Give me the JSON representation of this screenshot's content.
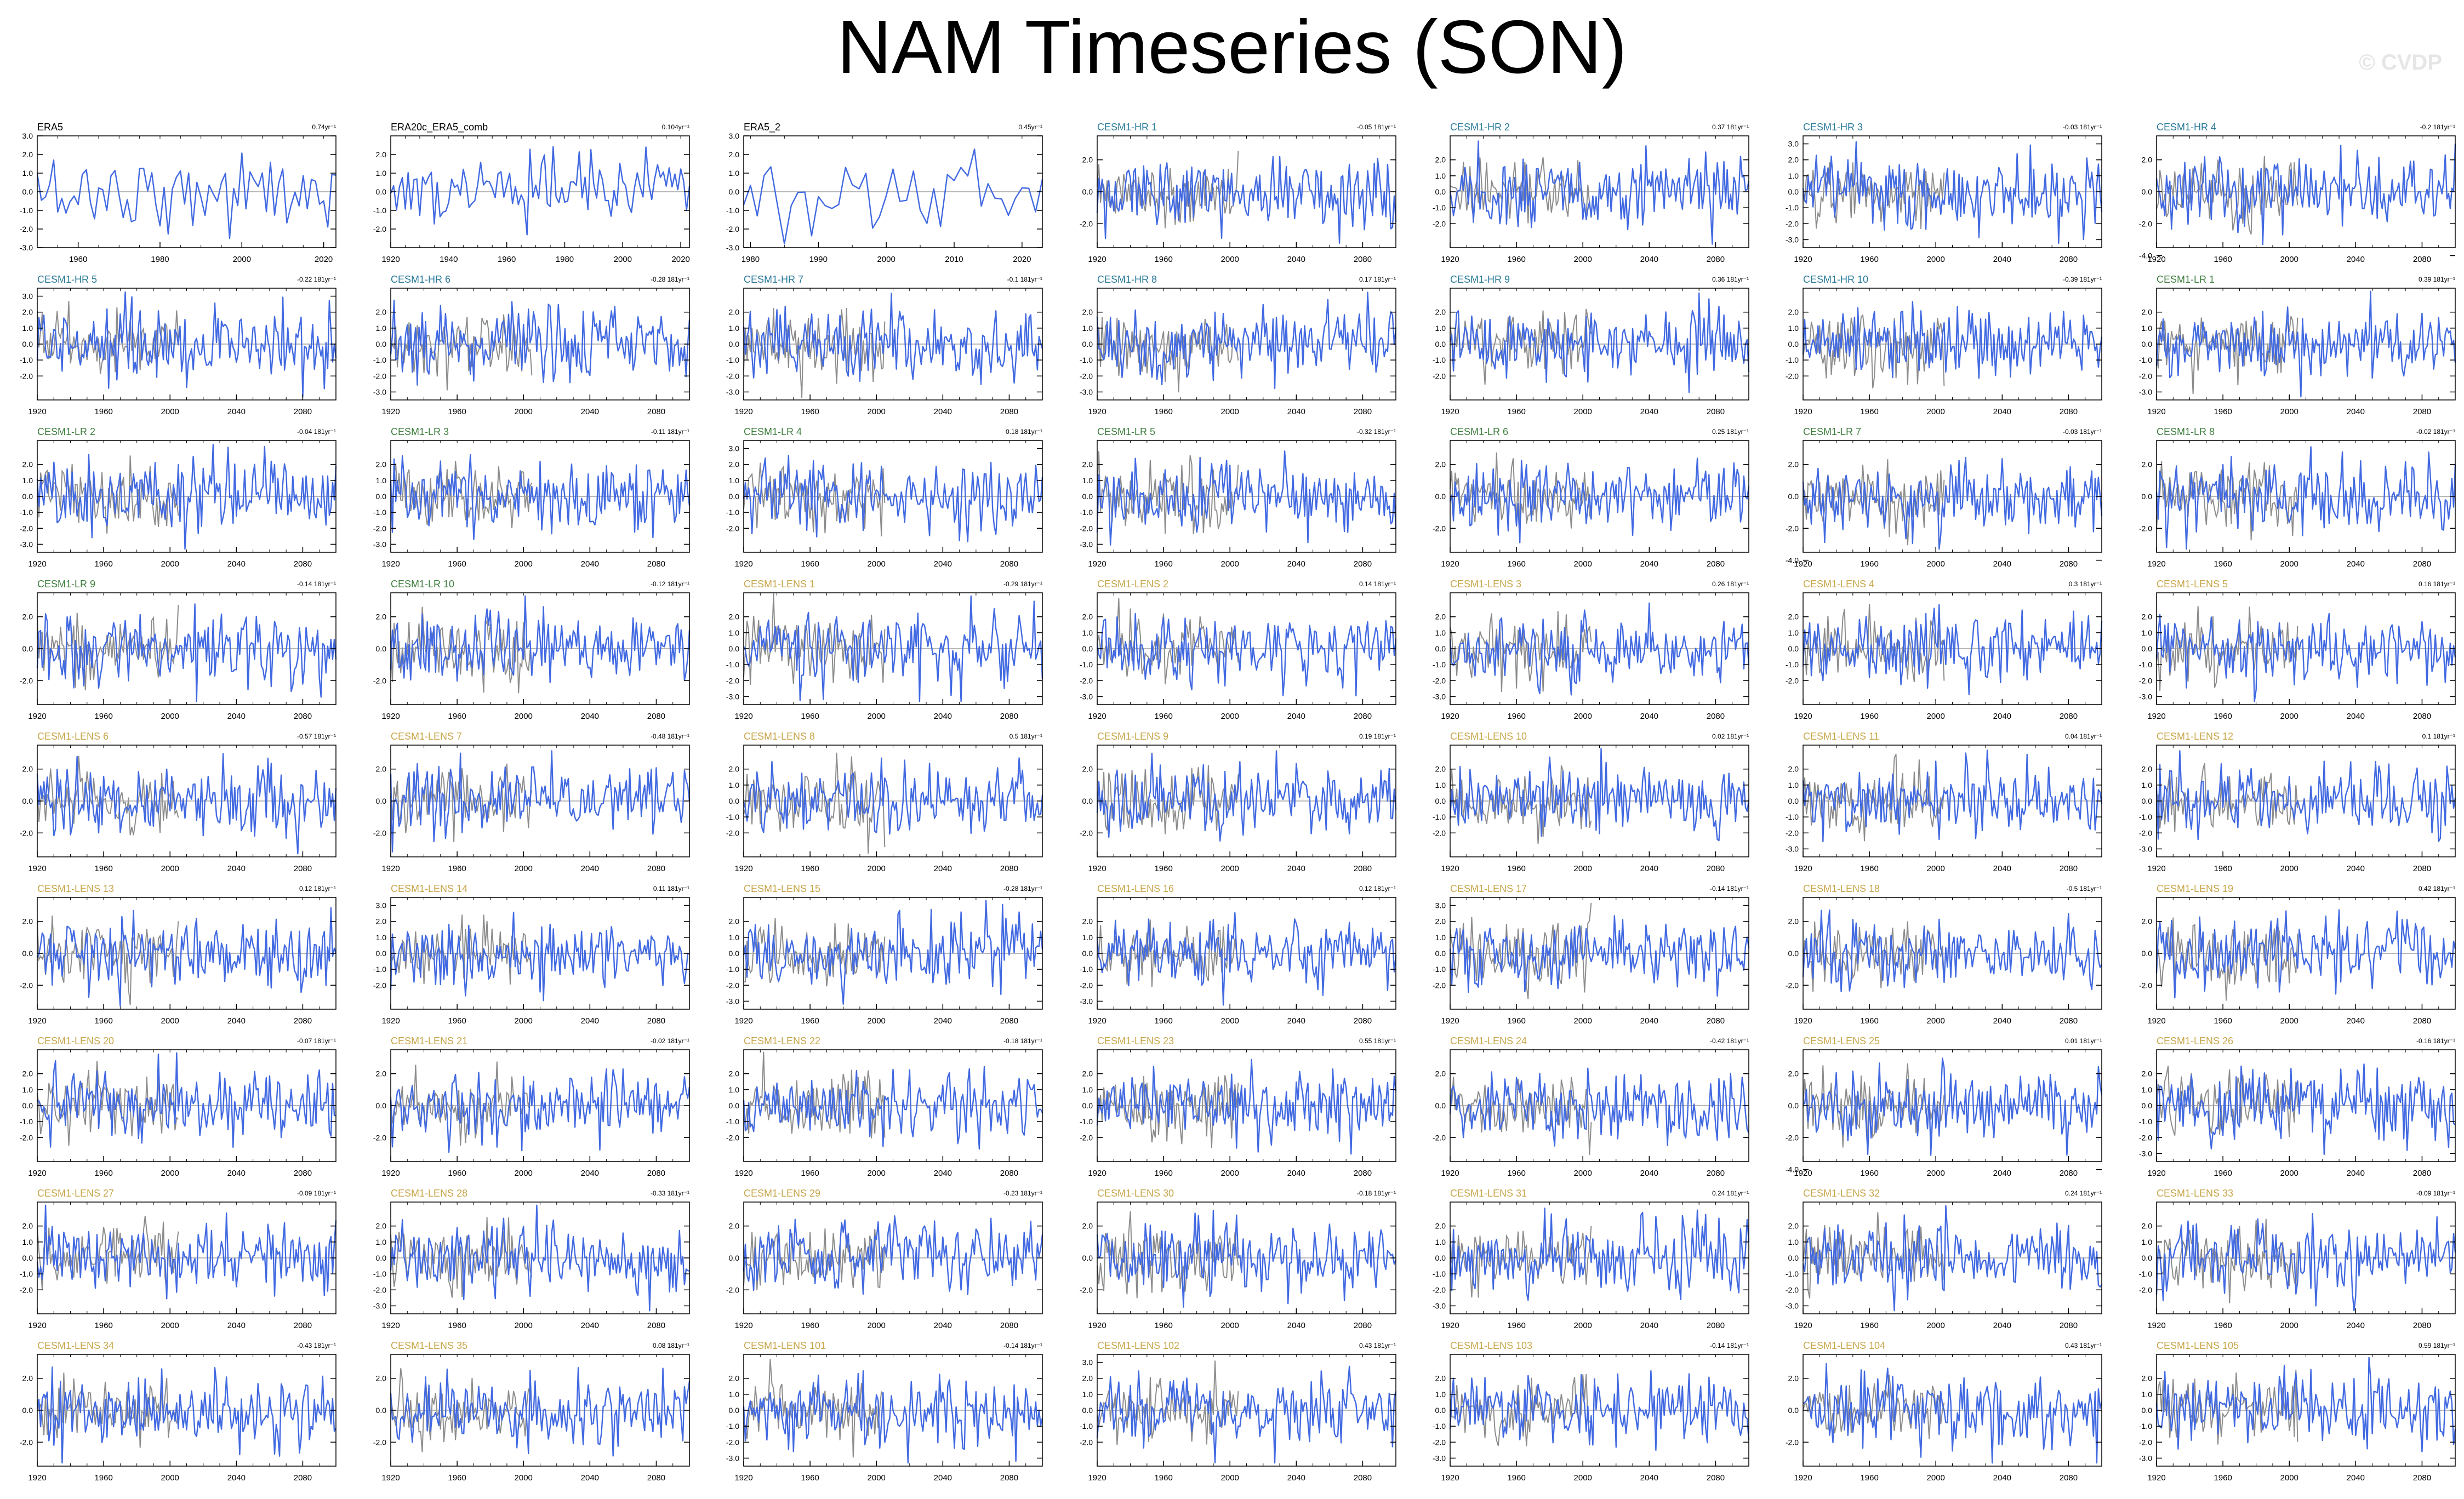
{
  "title": "NAM Timeseries (SON)",
  "watermark": "© CVDP",
  "colors": {
    "series": "#4169e1",
    "ensemble": "#8c8c8c",
    "zero_line": "#a0a0a0",
    "obs_label": "#000000",
    "hr_label": "#2a7a9a",
    "lr_label": "#3f7f3f",
    "lens_label": "#c8a64a"
  },
  "chart_data": {
    "type": "line",
    "layout": "9 rows x 7 columns of panels",
    "panels": [
      {
        "label": "ERA5",
        "trend": "0.74yr⁻¹",
        "group": "obs",
        "xticks": [
          "1960",
          "1980",
          "2000",
          "2020"
        ],
        "xlim": [
          1950,
          2023
        ],
        "yticks": [
          "3.0",
          "2.0",
          "1.0",
          "0.0",
          "-1.0",
          "-2.0",
          "-3.0"
        ],
        "ylim": [
          -3,
          3
        ]
      },
      {
        "label": "ERA20c_ERA5_comb",
        "trend": "0.104yr⁻¹",
        "group": "obs",
        "xticks": [
          "1920",
          "1940",
          "1960",
          "1980",
          "2000",
          "2020"
        ],
        "xlim": [
          1920,
          2023
        ],
        "yticks": [
          "2.0",
          "1.0",
          "0.0",
          "-1.0",
          "-2.0"
        ],
        "ylim": [
          -3,
          3
        ]
      },
      {
        "label": "ERA5_2",
        "trend": "0.45yr⁻¹",
        "group": "obs",
        "xticks": [
          "1980",
          "1990",
          "2000",
          "2010",
          "2020"
        ],
        "xlim": [
          1979,
          2023
        ],
        "yticks": [
          "3.0",
          "2.0",
          "1.0",
          "0.0",
          "-1.0",
          "-2.0",
          "-3.0"
        ],
        "ylim": [
          -3,
          3
        ]
      },
      {
        "label": "CESM1-HR 1",
        "trend": "-0.05 181yr⁻¹",
        "group": "hr",
        "yticks": [
          "2.0",
          "0.0",
          "-2.0"
        ]
      },
      {
        "label": "CESM1-HR 2",
        "trend": "0.37 181yr⁻¹",
        "group": "hr",
        "yticks": [
          "2.0",
          "1.0",
          "0.0",
          "-1.0",
          "-2.0"
        ]
      },
      {
        "label": "CESM1-HR 3",
        "trend": "-0.03 181yr⁻¹",
        "group": "hr",
        "yticks": [
          "3.0",
          "2.0",
          "1.0",
          "0.0",
          "-1.0",
          "-2.0",
          "-3.0"
        ]
      },
      {
        "label": "CESM1-HR 4",
        "trend": "-0.2 181yr⁻¹",
        "group": "hr",
        "yticks": [
          "2.0",
          "0.0",
          "-2.0",
          "-4.0"
        ]
      },
      {
        "label": "CESM1-HR 5",
        "trend": "-0.22 181yr⁻¹",
        "group": "hr",
        "yticks": [
          "3.0",
          "2.0",
          "1.0",
          "0.0",
          "-1.0",
          "-2.0"
        ]
      },
      {
        "label": "CESM1-HR 6",
        "trend": "-0.28 181yr⁻¹",
        "group": "hr",
        "yticks": [
          "2.0",
          "1.0",
          "0.0",
          "-1.0",
          "-2.0",
          "-3.0"
        ]
      },
      {
        "label": "CESM1-HR 7",
        "trend": "-0.1 181yr⁻¹",
        "group": "hr",
        "yticks": [
          "2.0",
          "1.0",
          "0.0",
          "-1.0",
          "-2.0",
          "-3.0"
        ]
      },
      {
        "label": "CESM1-HR 8",
        "trend": "0.17 181yr⁻¹",
        "group": "hr",
        "yticks": [
          "2.0",
          "1.0",
          "0.0",
          "-1.0",
          "-2.0",
          "-3.0"
        ]
      },
      {
        "label": "CESM1-HR 9",
        "trend": "0.36 181yr⁻¹",
        "group": "hr",
        "yticks": [
          "2.0",
          "1.0",
          "0.0",
          "-1.0",
          "-2.0"
        ]
      },
      {
        "label": "CESM1-HR 10",
        "trend": "-0.39 181yr⁻¹",
        "group": "hr",
        "yticks": [
          "2.0",
          "1.0",
          "0.0",
          "-1.0",
          "-2.0"
        ]
      },
      {
        "label": "CESM1-LR 1",
        "trend": "0.39 181yr⁻¹",
        "group": "lr",
        "yticks": [
          "2.0",
          "1.0",
          "0.0",
          "-1.0",
          "-2.0",
          "-3.0"
        ]
      },
      {
        "label": "CESM1-LR 2",
        "trend": "-0.04 181yr⁻¹",
        "group": "lr",
        "yticks": [
          "2.0",
          "1.0",
          "0.0",
          "-1.0",
          "-2.0",
          "-3.0"
        ]
      },
      {
        "label": "CESM1-LR 3",
        "trend": "-0.11 181yr⁻¹",
        "group": "lr",
        "yticks": [
          "2.0",
          "1.0",
          "0.0",
          "-1.0",
          "-2.0",
          "-3.0"
        ]
      },
      {
        "label": "CESM1-LR 4",
        "trend": "0.18 181yr⁻¹",
        "group": "lr",
        "yticks": [
          "3.0",
          "2.0",
          "1.0",
          "0.0",
          "-1.0",
          "-2.0"
        ]
      },
      {
        "label": "CESM1-LR 5",
        "trend": "-0.32 181yr⁻¹",
        "group": "lr",
        "yticks": [
          "2.0",
          "1.0",
          "0.0",
          "-1.0",
          "-2.0",
          "-3.0"
        ]
      },
      {
        "label": "CESM1-LR 6",
        "trend": "0.25 181yr⁻¹",
        "group": "lr",
        "yticks": [
          "2.0",
          "0.0",
          "-2.0"
        ]
      },
      {
        "label": "CESM1-LR 7",
        "trend": "-0.03 181yr⁻¹",
        "group": "lr",
        "yticks": [
          "2.0",
          "0.0",
          "-2.0",
          "-4.0"
        ]
      },
      {
        "label": "CESM1-LR 8",
        "trend": "-0.02 181yr⁻¹",
        "group": "lr",
        "yticks": [
          "2.0",
          "0.0",
          "-2.0"
        ]
      },
      {
        "label": "CESM1-LR 9",
        "trend": "-0.14 181yr⁻¹",
        "group": "lr",
        "yticks": [
          "2.0",
          "0.0",
          "-2.0"
        ]
      },
      {
        "label": "CESM1-LR 10",
        "trend": "-0.12 181yr⁻¹",
        "group": "lr",
        "yticks": [
          "2.0",
          "0.0",
          "-2.0"
        ]
      },
      {
        "label": "CESM1-LENS 1",
        "trend": "-0.29 181yr⁻¹",
        "group": "lens",
        "yticks": [
          "2.0",
          "1.0",
          "0.0",
          "-1.0",
          "-2.0",
          "-3.0"
        ]
      },
      {
        "label": "CESM1-LENS 2",
        "trend": "0.14 181yr⁻¹",
        "group": "lens",
        "yticks": [
          "2.0",
          "1.0",
          "0.0",
          "-1.0",
          "-2.0",
          "-3.0"
        ]
      },
      {
        "label": "CESM1-LENS 3",
        "trend": "0.26 181yr⁻¹",
        "group": "lens",
        "yticks": [
          "2.0",
          "1.0",
          "0.0",
          "-1.0",
          "-2.0",
          "-3.0"
        ]
      },
      {
        "label": "CESM1-LENS 4",
        "trend": "0.3 181yr⁻¹",
        "group": "lens",
        "yticks": [
          "2.0",
          "1.0",
          "0.0",
          "-1.0",
          "-2.0"
        ]
      },
      {
        "label": "CESM1-LENS 5",
        "trend": "0.16 181yr⁻¹",
        "group": "lens",
        "yticks": [
          "2.0",
          "1.0",
          "0.0",
          "-1.0",
          "-2.0",
          "-3.0"
        ]
      },
      {
        "label": "CESM1-LENS 6",
        "trend": "-0.57 181yr⁻¹",
        "group": "lens",
        "yticks": [
          "2.0",
          "0.0",
          "-2.0"
        ]
      },
      {
        "label": "CESM1-LENS 7",
        "trend": "-0.48 181yr⁻¹",
        "group": "lens",
        "yticks": [
          "2.0",
          "0.0",
          "-2.0"
        ]
      },
      {
        "label": "CESM1-LENS 8",
        "trend": "0.5 181yr⁻¹",
        "group": "lens",
        "yticks": [
          "2.0",
          "1.0",
          "0.0",
          "-1.0",
          "-2.0"
        ]
      },
      {
        "label": "CESM1-LENS 9",
        "trend": "0.19 181yr⁻¹",
        "group": "lens",
        "yticks": [
          "2.0",
          "0.0",
          "-2.0"
        ]
      },
      {
        "label": "CESM1-LENS 10",
        "trend": "0.02 181yr⁻¹",
        "group": "lens",
        "yticks": [
          "2.0",
          "1.0",
          "0.0",
          "-1.0",
          "-2.0"
        ]
      },
      {
        "label": "CESM1-LENS 11",
        "trend": "0.04 181yr⁻¹",
        "group": "lens",
        "yticks": [
          "2.0",
          "1.0",
          "0.0",
          "-1.0",
          "-2.0",
          "-3.0"
        ]
      },
      {
        "label": "CESM1-LENS 12",
        "trend": "0.1 181yr⁻¹",
        "group": "lens",
        "yticks": [
          "2.0",
          "1.0",
          "0.0",
          "-1.0",
          "-2.0",
          "-3.0"
        ]
      },
      {
        "label": "CESM1-LENS 13",
        "trend": "0.12 181yr⁻¹",
        "group": "lens",
        "yticks": [
          "2.0",
          "0.0",
          "-2.0"
        ]
      },
      {
        "label": "CESM1-LENS 14",
        "trend": "0.11 181yr⁻¹",
        "group": "lens",
        "yticks": [
          "3.0",
          "2.0",
          "1.0",
          "0.0",
          "-1.0",
          "-2.0"
        ]
      },
      {
        "label": "CESM1-LENS 15",
        "trend": "-0.28 181yr⁻¹",
        "group": "lens",
        "yticks": [
          "2.0",
          "1.0",
          "0.0",
          "-1.0",
          "-2.0",
          "-3.0"
        ]
      },
      {
        "label": "CESM1-LENS 16",
        "trend": "0.12 181yr⁻¹",
        "group": "lens",
        "yticks": [
          "2.0",
          "1.0",
          "0.0",
          "-1.0",
          "-2.0",
          "-3.0"
        ]
      },
      {
        "label": "CESM1-LENS 17",
        "trend": "-0.14 181yr⁻¹",
        "group": "lens",
        "yticks": [
          "3.0",
          "2.0",
          "1.0",
          "0.0",
          "-1.0",
          "-2.0"
        ]
      },
      {
        "label": "CESM1-LENS 18",
        "trend": "-0.5 181yr⁻¹",
        "group": "lens",
        "yticks": [
          "2.0",
          "0.0",
          "-2.0"
        ]
      },
      {
        "label": "CESM1-LENS 19",
        "trend": "0.42 181yr⁻¹",
        "group": "lens",
        "yticks": [
          "2.0",
          "0.0",
          "-2.0"
        ]
      },
      {
        "label": "CESM1-LENS 20",
        "trend": "-0.07 181yr⁻¹",
        "group": "lens",
        "yticks": [
          "2.0",
          "1.0",
          "0.0",
          "-1.0",
          "-2.0"
        ]
      },
      {
        "label": "CESM1-LENS 21",
        "trend": "-0.02 181yr⁻¹",
        "group": "lens",
        "yticks": [
          "2.0",
          "0.0",
          "-2.0"
        ]
      },
      {
        "label": "CESM1-LENS 22",
        "trend": "-0.18 181yr⁻¹",
        "group": "lens",
        "yticks": [
          "2.0",
          "1.0",
          "0.0",
          "-1.0",
          "-2.0"
        ]
      },
      {
        "label": "CESM1-LENS 23",
        "trend": "0.55 181yr⁻¹",
        "group": "lens",
        "yticks": [
          "2.0",
          "1.0",
          "0.0",
          "-1.0",
          "-2.0"
        ]
      },
      {
        "label": "CESM1-LENS 24",
        "trend": "-0.42 181yr⁻¹",
        "group": "lens",
        "yticks": [
          "2.0",
          "0.0",
          "-2.0"
        ]
      },
      {
        "label": "CESM1-LENS 25",
        "trend": "0.01 181yr⁻¹",
        "group": "lens",
        "yticks": [
          "2.0",
          "0.0",
          "-2.0",
          "-4.0"
        ]
      },
      {
        "label": "CESM1-LENS 26",
        "trend": "-0.16 181yr⁻¹",
        "group": "lens",
        "yticks": [
          "2.0",
          "1.0",
          "0.0",
          "-1.0",
          "-2.0",
          "-3.0"
        ]
      },
      {
        "label": "CESM1-LENS 27",
        "trend": "-0.09 181yr⁻¹",
        "group": "lens",
        "yticks": [
          "2.0",
          "1.0",
          "0.0",
          "-1.0",
          "-2.0"
        ]
      },
      {
        "label": "CESM1-LENS 28",
        "trend": "-0.33 181yr⁻¹",
        "group": "lens",
        "yticks": [
          "2.0",
          "1.0",
          "0.0",
          "-1.0",
          "-2.0",
          "-3.0"
        ]
      },
      {
        "label": "CESM1-LENS 29",
        "trend": "-0.23 181yr⁻¹",
        "group": "lens",
        "yticks": [
          "2.0",
          "0.0",
          "-2.0"
        ]
      },
      {
        "label": "CESM1-LENS 30",
        "trend": "-0.18 181yr⁻¹",
        "group": "lens",
        "yticks": [
          "2.0",
          "0.0",
          "-2.0"
        ]
      },
      {
        "label": "CESM1-LENS 31",
        "trend": "0.24 181yr⁻¹",
        "group": "lens",
        "yticks": [
          "2.0",
          "1.0",
          "0.0",
          "-1.0",
          "-2.0",
          "-3.0"
        ]
      },
      {
        "label": "CESM1-LENS 32",
        "trend": "0.24 181yr⁻¹",
        "group": "lens",
        "yticks": [
          "2.0",
          "1.0",
          "0.0",
          "-1.0",
          "-2.0",
          "-3.0"
        ]
      },
      {
        "label": "CESM1-LENS 33",
        "trend": "-0.09 181yr⁻¹",
        "group": "lens",
        "yticks": [
          "2.0",
          "1.0",
          "0.0",
          "-1.0",
          "-2.0"
        ]
      },
      {
        "label": "CESM1-LENS 34",
        "trend": "-0.43 181yr⁻¹",
        "group": "lens",
        "yticks": [
          "2.0",
          "0.0",
          "-2.0"
        ]
      },
      {
        "label": "CESM1-LENS 35",
        "trend": "0.08 181yr⁻¹",
        "group": "lens",
        "yticks": [
          "2.0",
          "0.0",
          "-2.0"
        ]
      },
      {
        "label": "CESM1-LENS 101",
        "trend": "-0.14 181yr⁻¹",
        "group": "lens",
        "yticks": [
          "2.0",
          "1.0",
          "0.0",
          "-1.0",
          "-2.0",
          "-3.0"
        ]
      },
      {
        "label": "CESM1-LENS 102",
        "trend": "0.43 181yr⁻¹",
        "group": "lens",
        "yticks": [
          "3.0",
          "2.0",
          "1.0",
          "0.0",
          "-1.0",
          "-2.0"
        ]
      },
      {
        "label": "CESM1-LENS 103",
        "trend": "-0.14 181yr⁻¹",
        "group": "lens",
        "yticks": [
          "2.0",
          "1.0",
          "0.0",
          "-1.0",
          "-2.0",
          "-3.0"
        ]
      },
      {
        "label": "CESM1-LENS 104",
        "trend": "0.43 181yr⁻¹",
        "group": "lens",
        "yticks": [
          "2.0",
          "0.0",
          "-2.0"
        ]
      },
      {
        "label": "CESM1-LENS 105",
        "trend": "0.59 181yr⁻¹",
        "group": "lens",
        "yticks": [
          "2.0",
          "1.0",
          "0.0",
          "-1.0",
          "-2.0",
          "-3.0"
        ]
      }
    ],
    "model_xticks": [
      "1920",
      "1960",
      "2000",
      "2040",
      "2080"
    ],
    "model_xlim": [
      1920,
      2100
    ],
    "model_ylim": [
      -3.5,
      3.5
    ],
    "grid": false
  }
}
